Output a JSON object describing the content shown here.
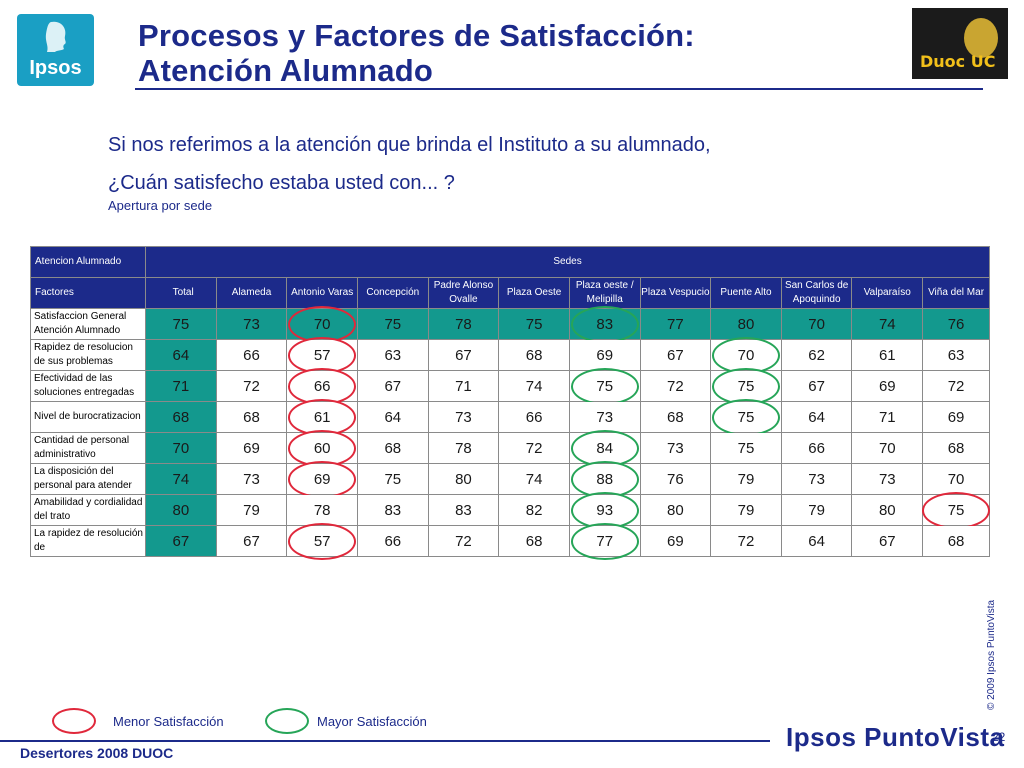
{
  "logos": {
    "ipsos": "Ipsos",
    "duoc": "Duoc UC"
  },
  "title": {
    "line1": "Procesos y Factores de Satisfacción:",
    "line2": "Atención Alumnado"
  },
  "question": {
    "line1": "Si nos referimos a la atención que brinda el Instituto a su alumnado,",
    "line2": "¿Cuán satisfecho estaba usted con... ?"
  },
  "subtitle": "Apertura por sede",
  "table": {
    "corner_label": "Atencion Alumnado",
    "group_label": "Sedes",
    "factor_label": "Factores",
    "columns": [
      "Total",
      "Alameda",
      "Antonio Varas",
      "Concepción",
      "Padre Alonso Ovalle",
      "Plaza Oeste",
      "Plaza oeste / Melipilla",
      "Plaza Vespucio",
      "Puente Alto",
      "San Carlos de Apoquindo",
      "Valparaíso",
      "Viña del Mar"
    ],
    "rows": [
      {
        "label": "Satisfaccion General Atención Alumnado",
        "values": [
          "75",
          "73",
          "70",
          "75",
          "78",
          "75",
          "83",
          "77",
          "80",
          "70",
          "74",
          "76"
        ],
        "red": [
          2
        ],
        "green": [
          6
        ]
      },
      {
        "label": "Rapidez de resolucion de sus problemas",
        "values": [
          "64",
          "66",
          "57",
          "63",
          "67",
          "68",
          "69",
          "67",
          "70",
          "62",
          "61",
          "63"
        ],
        "red": [
          2
        ],
        "green": [
          8
        ]
      },
      {
        "label": "Efectividad de las soluciones entregadas",
        "values": [
          "71",
          "72",
          "66",
          "67",
          "71",
          "74",
          "75",
          "72",
          "75",
          "67",
          "69",
          "72"
        ],
        "red": [
          2
        ],
        "green": [
          6,
          8
        ]
      },
      {
        "label": "Nivel de burocratizacion",
        "values": [
          "68",
          "68",
          "61",
          "64",
          "73",
          "66",
          "73",
          "68",
          "75",
          "64",
          "71",
          "69"
        ],
        "red": [
          2
        ],
        "green": [
          8
        ]
      },
      {
        "label": "Cantidad de personal administrativo",
        "values": [
          "70",
          "69",
          "60",
          "68",
          "78",
          "72",
          "84",
          "73",
          "75",
          "66",
          "70",
          "68"
        ],
        "red": [
          2
        ],
        "green": [
          6
        ]
      },
      {
        "label": "La disposición del personal para atender",
        "values": [
          "74",
          "73",
          "69",
          "75",
          "80",
          "74",
          "88",
          "76",
          "79",
          "73",
          "73",
          "70"
        ],
        "red": [
          2
        ],
        "green": [
          6
        ]
      },
      {
        "label": "Amabilidad y cordialidad del trato",
        "values": [
          "80",
          "79",
          "78",
          "83",
          "83",
          "82",
          "93",
          "80",
          "79",
          "79",
          "80",
          "75"
        ],
        "red": [
          11
        ],
        "green": [
          6
        ]
      },
      {
        "label": "La rapidez de resolución de",
        "values": [
          "67",
          "67",
          "57",
          "66",
          "72",
          "68",
          "77",
          "69",
          "72",
          "64",
          "67",
          "68"
        ],
        "red": [
          2
        ],
        "green": [
          6
        ]
      }
    ]
  },
  "legend": {
    "red_label": "Menor Satisfacción",
    "green_label": "Mayor Satisfacción"
  },
  "colors": {
    "navy": "#1c2a8a",
    "teal": "#13998e",
    "red": "#e0283b",
    "green": "#26a558"
  },
  "copyright": "© 2009 Ipsos PuntoVista",
  "footer": "Desertores 2008 DUOC",
  "brand": "Ipsos PuntoVista",
  "page_number": "22"
}
